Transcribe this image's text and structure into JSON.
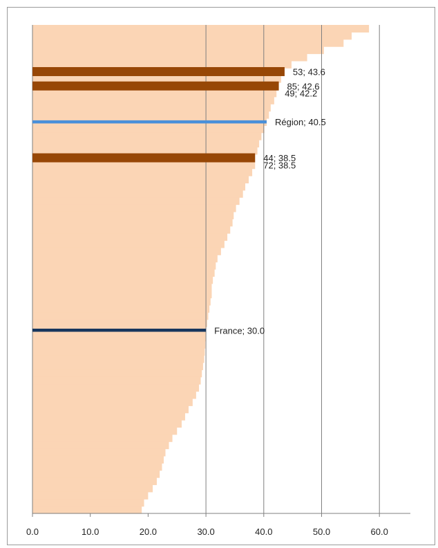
{
  "chart_data": {
    "type": "bar",
    "orientation": "horizontal",
    "xlim": [
      0,
      65
    ],
    "xticks": [
      "0.0",
      "10.0",
      "20.0",
      "30.0",
      "40.0",
      "50.0",
      "60.0"
    ],
    "xtick_values": [
      0,
      10,
      20,
      30,
      40,
      50,
      60
    ],
    "gridlines": [
      0,
      30,
      40,
      50,
      60
    ],
    "background_series": {
      "color": "#fbd5b5",
      "values": [
        58.2,
        55.2,
        53.8,
        50.4,
        47.5,
        44.8,
        43.6,
        43.0,
        42.6,
        42.2,
        41.8,
        41.2,
        40.9,
        40.5,
        40.1,
        39.6,
        39.2,
        38.9,
        38.5,
        38.5,
        38.0,
        37.4,
        36.8,
        36.4,
        35.8,
        35.2,
        34.8,
        34.6,
        34.2,
        33.7,
        33.2,
        32.6,
        32.0,
        31.7,
        31.5,
        31.2,
        31.0,
        31.0,
        30.8,
        30.6,
        30.4,
        30.2,
        30.0,
        30.0,
        29.9,
        29.8,
        29.7,
        29.5,
        29.3,
        29.1,
        28.8,
        28.3,
        27.7,
        27.0,
        26.4,
        25.8,
        25.0,
        24.2,
        23.6,
        23.0,
        22.7,
        22.4,
        22.0,
        21.5,
        20.8,
        20.0,
        19.3,
        18.9
      ]
    },
    "highlights": [
      {
        "label": "53; 43.6",
        "value": 43.6,
        "row": 6,
        "color": "#974706"
      },
      {
        "label": "85; 42.6",
        "value": 42.6,
        "row": 8,
        "color": "#974706"
      },
      {
        "label": "49; 42.2",
        "value": 42.2,
        "row": 9,
        "color": null
      },
      {
        "label": "Région; 40.5",
        "value": 40.5,
        "row": 13,
        "color": "#4a90d9"
      },
      {
        "label": "44; 38.5",
        "value": 38.5,
        "row": 18,
        "color": "#974706"
      },
      {
        "label": "72; 38.5",
        "value": 38.5,
        "row": 19,
        "color": null
      },
      {
        "label": "France; 30.0",
        "value": 30.0,
        "row": 42,
        "color": "#17365d"
      }
    ]
  }
}
